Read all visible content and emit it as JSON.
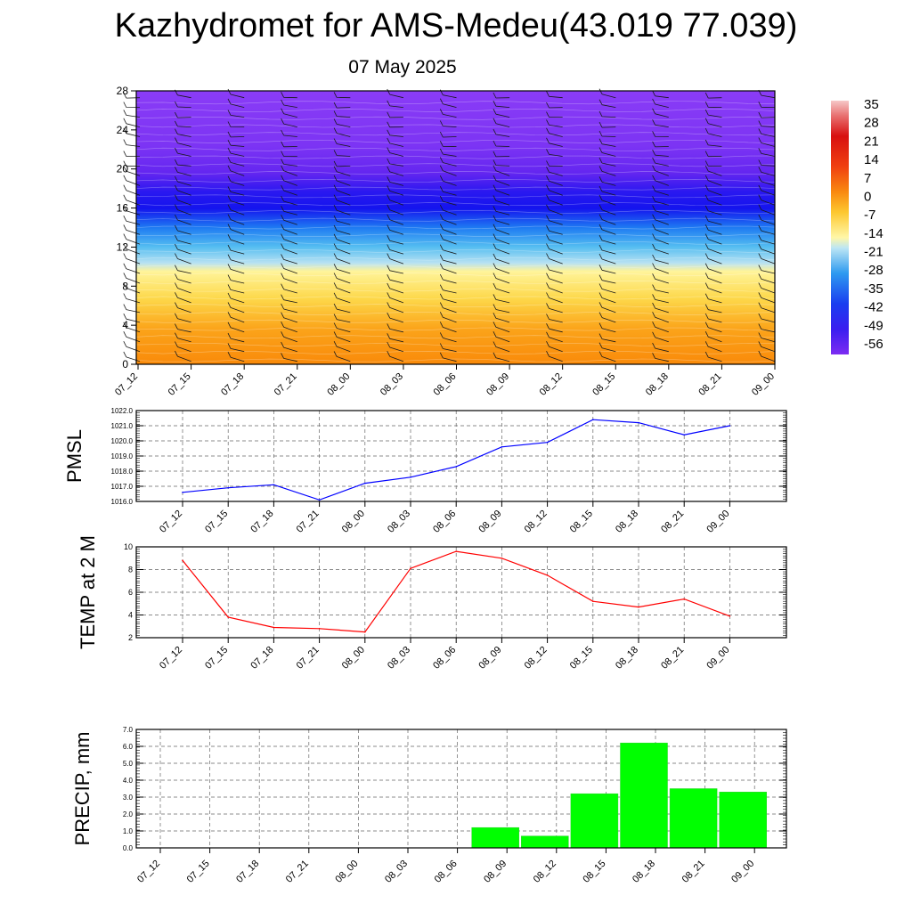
{
  "title": "Kazhydromet for AMS-Medeu(43.019 77.039)",
  "subtitle": "07 May 2025",
  "chart_data": [
    {
      "type": "heatmap",
      "name": "cross-section",
      "x_categories": [
        "07_12",
        "07_15",
        "07_18",
        "07_21",
        "08_00",
        "08_03",
        "08_06",
        "08_09",
        "08_12",
        "08_15",
        "08_18",
        "08_21",
        "09_00"
      ],
      "y_ticks": [
        0,
        4,
        8,
        12,
        16,
        20,
        24,
        28
      ],
      "ylim": [
        0,
        28
      ],
      "colorbar_labels": [
        "35",
        "28",
        "21",
        "14",
        "7",
        "0",
        "-7",
        "-14",
        "-21",
        "-28",
        "-35",
        "-42",
        "-49",
        "-56"
      ],
      "colorbar_range": [
        -60,
        38
      ],
      "wind_barbs": true
    },
    {
      "type": "line",
      "name": "pmsl",
      "ylabel": "PMSL",
      "x": [
        "07_12",
        "07_15",
        "07_18",
        "07_21",
        "08_00",
        "08_03",
        "08_06",
        "08_09",
        "08_12",
        "08_15",
        "08_18",
        "08_21",
        "09_00"
      ],
      "values": [
        1016.6,
        1016.9,
        1017.1,
        1016.1,
        1017.2,
        1017.6,
        1018.3,
        1019.6,
        1019.9,
        1021.4,
        1021.2,
        1020.4,
        1021.0
      ],
      "ylim": [
        1016.0,
        1022.0
      ],
      "y_ticks": [
        "1016.0",
        "1017.0",
        "1018.0",
        "1019.0",
        "1020.0",
        "1021.0",
        "1022.0"
      ],
      "color": "#0000ff"
    },
    {
      "type": "line",
      "name": "temp",
      "ylabel": "TEMP at 2 M",
      "x": [
        "07_12",
        "07_15",
        "07_18",
        "07_21",
        "08_00",
        "08_03",
        "08_06",
        "08_09",
        "08_12",
        "08_15",
        "08_18",
        "08_21",
        "09_00"
      ],
      "values": [
        8.8,
        3.8,
        2.9,
        2.8,
        2.5,
        8.1,
        9.6,
        9.0,
        7.5,
        5.2,
        4.7,
        5.4,
        3.9
      ],
      "ylim": [
        2,
        10
      ],
      "y_ticks": [
        "2",
        "4",
        "6",
        "8",
        "10"
      ],
      "color": "#ff0000"
    },
    {
      "type": "bar",
      "name": "precip",
      "ylabel": "PRECIP, mm",
      "x": [
        "07_12",
        "07_15",
        "07_18",
        "07_21",
        "08_00",
        "08_03",
        "08_06",
        "08_09",
        "08_12",
        "08_15",
        "08_18",
        "08_21",
        "09_00"
      ],
      "values": [
        0,
        0,
        0,
        0,
        0,
        0,
        0,
        1.2,
        0.7,
        3.2,
        6.2,
        3.5,
        3.3
      ],
      "ylim": [
        0,
        7
      ],
      "y_ticks": [
        "0.0",
        "1.0",
        "2.0",
        "3.0",
        "4.0",
        "5.0",
        "6.0",
        "7.0"
      ],
      "color": "#00ff00"
    }
  ]
}
